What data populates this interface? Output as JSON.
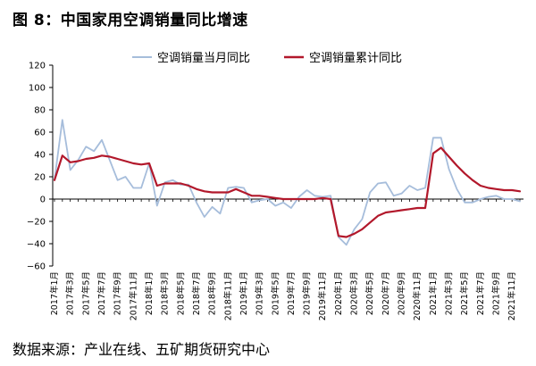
{
  "page": {
    "title": "图 8：中国家用空调销量同比增速",
    "source": "数据来源：产业在线、五矿期货研究中心"
  },
  "chart_data": {
    "type": "line",
    "x": [
      "2017年1月",
      "2017年2月",
      "2017年3月",
      "2017年4月",
      "2017年5月",
      "2017年6月",
      "2017年7月",
      "2017年8月",
      "2017年9月",
      "2017年10月",
      "2017年11月",
      "2017年12月",
      "2018年1月",
      "2018年2月",
      "2018年3月",
      "2018年4月",
      "2018年5月",
      "2018年6月",
      "2018年7月",
      "2018年8月",
      "2018年9月",
      "2018年10月",
      "2018年11月",
      "2018年12月",
      "2019年1月",
      "2019年2月",
      "2019年3月",
      "2019年4月",
      "2019年5月",
      "2019年6月",
      "2019年7月",
      "2019年8月",
      "2019年9月",
      "2019年10月",
      "2019年11月",
      "2019年12月",
      "2020年1月",
      "2020年2月",
      "2020年3月",
      "2020年4月",
      "2020年5月",
      "2020年6月",
      "2020年7月",
      "2020年8月",
      "2020年9月",
      "2020年10月",
      "2020年11月",
      "2020年12月",
      "2021年1月",
      "2021年2月",
      "2021年3月",
      "2021年4月",
      "2021年5月",
      "2021年6月",
      "2021年7月",
      "2021年8月",
      "2021年9月",
      "2021年10月",
      "2021年11月",
      "2021年12月"
    ],
    "x_ticks": [
      "2017年1月",
      "2017年3月",
      "2017年5月",
      "2017年7月",
      "2017年9月",
      "2017年11月",
      "2018年1月",
      "2018年3月",
      "2018年5月",
      "2018年7月",
      "2018年9月",
      "2018年11月",
      "2019年1月",
      "2019年3月",
      "2019年5月",
      "2019年7月",
      "2019年9月",
      "2019年11月",
      "2020年1月",
      "2020年3月",
      "2020年5月",
      "2020年7月",
      "2020年9月",
      "2020年11月",
      "2021年1月",
      "2021年3月",
      "2021年5月",
      "2021年7月",
      "2021年9月",
      "2021年11月"
    ],
    "series": [
      {
        "name": "空调销量当月同比",
        "color": "#a6bddb",
        "values": [
          17,
          71,
          26,
          35,
          47,
          43,
          53,
          35,
          17,
          20,
          10,
          10,
          32,
          -6,
          15,
          17,
          13,
          13,
          -3,
          -16,
          -7,
          -13,
          10,
          11,
          10,
          -3,
          -1,
          0,
          -6,
          -3,
          -8,
          2,
          8,
          3,
          2,
          3,
          -34,
          -41,
          -27,
          -18,
          6,
          14,
          15,
          3,
          5,
          12,
          8,
          10,
          55,
          55,
          27,
          9,
          -3,
          -3,
          0,
          2,
          3,
          0,
          0,
          -2
        ]
      },
      {
        "name": "空调销量累计同比",
        "color": "#b2182b",
        "values": [
          17,
          39,
          33,
          34,
          36,
          37,
          39,
          38,
          36,
          34,
          32,
          31,
          32,
          12,
          14,
          14,
          14,
          12,
          9,
          7,
          6,
          6,
          6,
          9,
          6,
          3,
          3,
          2,
          1,
          0,
          0,
          0,
          0,
          0,
          1,
          0,
          -33,
          -34,
          -31,
          -27,
          -21,
          -15,
          -12,
          -11,
          -10,
          -9,
          -8,
          -8,
          41,
          46,
          38,
          30,
          23,
          17,
          12,
          10,
          9,
          8,
          8,
          7
        ]
      }
    ],
    "ylim": [
      -60,
      120
    ],
    "yticks": [
      -60,
      -40,
      -20,
      0,
      20,
      40,
      60,
      80,
      100,
      120
    ],
    "legend": "top-center",
    "grid": false
  }
}
